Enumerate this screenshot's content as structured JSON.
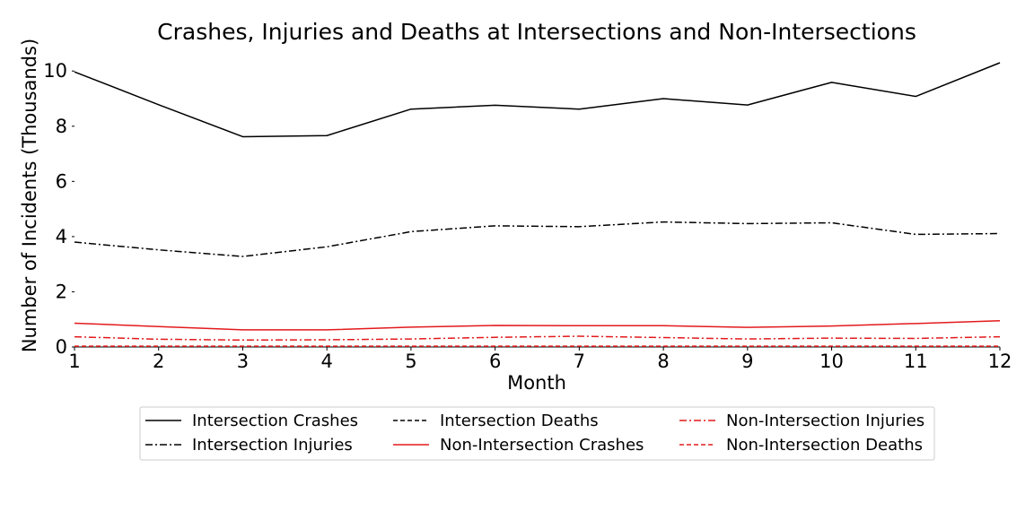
{
  "chart_data": {
    "type": "line",
    "title": "Crashes, Injuries and Deaths at Intersections and Non-Intersections",
    "xlabel": "Month",
    "ylabel": "Number of Incidents (Thousands)",
    "x": [
      1,
      2,
      3,
      4,
      5,
      6,
      7,
      8,
      9,
      10,
      11,
      12
    ],
    "xlim": [
      1,
      12
    ],
    "ylim": [
      0,
      10.3
    ],
    "xticks": [
      "1",
      "2",
      "3",
      "4",
      "5",
      "6",
      "7",
      "8",
      "9",
      "10",
      "11",
      "12"
    ],
    "yticks": [
      "0",
      "2",
      "4",
      "6",
      "8",
      "10"
    ],
    "grid": false,
    "legend_position": "bottom-center",
    "series": [
      {
        "name": "Intersection Crashes",
        "color": "#000000",
        "dash": "solid",
        "values": [
          9.97,
          8.78,
          7.62,
          7.66,
          8.62,
          8.76,
          8.62,
          9.0,
          8.77,
          9.59,
          9.08,
          10.3
        ]
      },
      {
        "name": "Intersection Injuries",
        "color": "#000000",
        "dash": "dashdot",
        "values": [
          3.8,
          3.52,
          3.28,
          3.63,
          4.18,
          4.39,
          4.36,
          4.53,
          4.47,
          4.5,
          4.08,
          4.11
        ]
      },
      {
        "name": "Intersection Deaths",
        "color": "#000000",
        "dash": "dashed",
        "values": [
          0.02,
          0.02,
          0.02,
          0.02,
          0.02,
          0.02,
          0.02,
          0.02,
          0.02,
          0.02,
          0.02,
          0.02
        ]
      },
      {
        "name": "Non-Intersection Crashes",
        "color": "#e31a1c",
        "dash": "solid",
        "values": [
          0.86,
          0.74,
          0.62,
          0.62,
          0.72,
          0.78,
          0.77,
          0.77,
          0.71,
          0.76,
          0.85,
          0.95
        ]
      },
      {
        "name": "Non-Intersection Injuries",
        "color": "#e31a1c",
        "dash": "dashdot",
        "values": [
          0.37,
          0.28,
          0.25,
          0.26,
          0.29,
          0.35,
          0.39,
          0.34,
          0.29,
          0.32,
          0.31,
          0.37
        ]
      },
      {
        "name": "Non-Intersection Deaths",
        "color": "#e31a1c",
        "dash": "dashed",
        "values": [
          0.03,
          0.03,
          0.03,
          0.03,
          0.03,
          0.03,
          0.03,
          0.03,
          0.03,
          0.03,
          0.03,
          0.03
        ]
      }
    ]
  }
}
